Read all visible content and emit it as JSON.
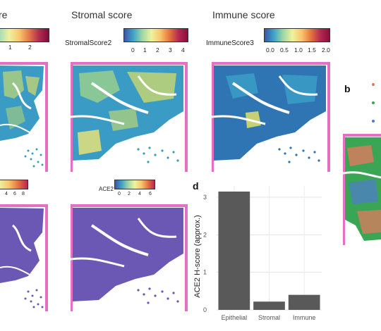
{
  "titles": {
    "epithelial_partial": "re",
    "stromal": "Stromal score",
    "immune": "Immune score"
  },
  "legends": {
    "epithelial_ticks": [
      "1",
      "2"
    ],
    "stromal_label": "StromalScore2",
    "stromal_ticks": [
      "0",
      "1",
      "2",
      "3",
      "4"
    ],
    "immune_label": "ImmuneScore3",
    "immune_ticks": [
      "0.0",
      "0.5",
      "1.0",
      "1.5",
      "2.0"
    ],
    "ace2_label": "ACE2",
    "ace2_ticks": [
      "0",
      "2",
      "4",
      "6"
    ],
    "ace2_left_ticks": [
      "4",
      "6",
      "8"
    ]
  },
  "panel_letters": {
    "b": "b",
    "d": "d"
  },
  "colors": {
    "tissue_edge": "#e46fc4",
    "score_base": "#3a9bc4",
    "score_high": "#d6dc6a",
    "ace2_base": "#6a58b4",
    "bar": "#595959"
  },
  "chart_data": {
    "type": "bar",
    "categories": [
      "Epithelial",
      "Stromal",
      "Immune"
    ],
    "values": [
      3.15,
      0.22,
      0.4
    ],
    "xlabel": "",
    "ylabel": "ACE2 H-score (approx.)",
    "ylim": [
      0,
      3.3
    ],
    "yticks": [
      "0",
      "1",
      "2",
      "3"
    ],
    "grid": true
  }
}
